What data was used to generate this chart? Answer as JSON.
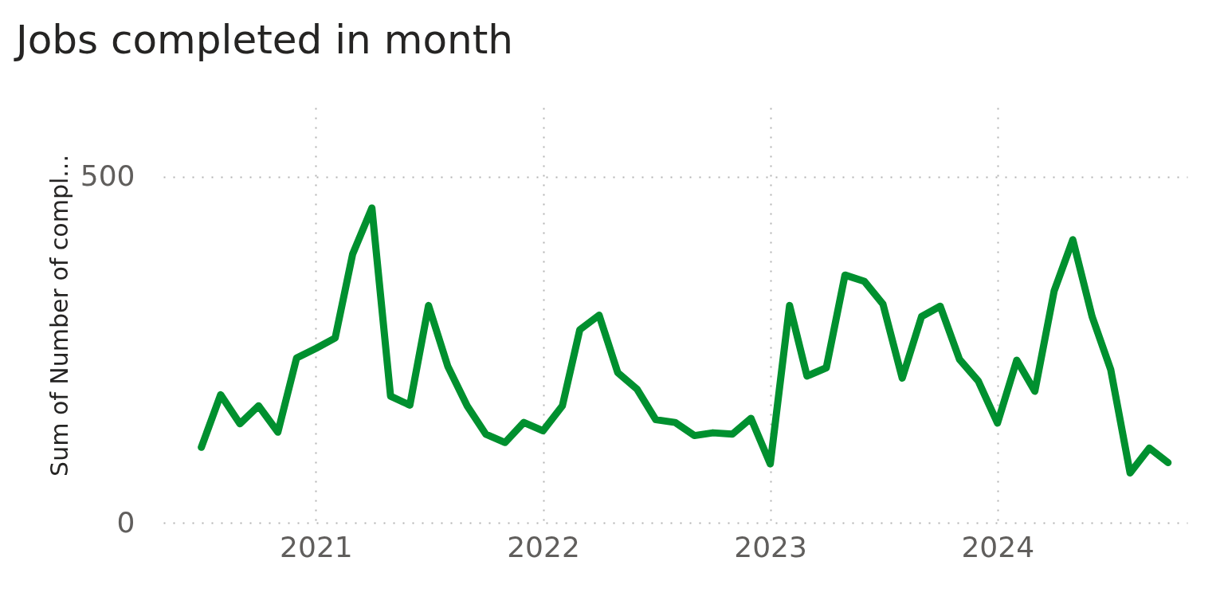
{
  "chart_data": {
    "type": "line",
    "title": "Jobs completed in month",
    "ylabel": "Sum of Number of compl...",
    "x": [
      "2020-07",
      "2020-08",
      "2020-09",
      "2020-10",
      "2020-11",
      "2020-12",
      "2021-01",
      "2021-02",
      "2021-03",
      "2021-04",
      "2021-05",
      "2021-06",
      "2021-07",
      "2021-08",
      "2021-09",
      "2021-10",
      "2021-11",
      "2021-12",
      "2022-01",
      "2022-02",
      "2022-03",
      "2022-04",
      "2022-05",
      "2022-06",
      "2022-07",
      "2022-08",
      "2022-09",
      "2022-10",
      "2022-11",
      "2022-12",
      "2023-01",
      "2023-02",
      "2023-03",
      "2023-04",
      "2023-05",
      "2023-06",
      "2023-07",
      "2023-08",
      "2023-09",
      "2023-10",
      "2023-11",
      "2023-12",
      "2024-01",
      "2024-02",
      "2024-03",
      "2024-04",
      "2024-05",
      "2024-06",
      "2024-07",
      "2024-08",
      "2024-09",
      "2024-10"
    ],
    "series": [
      {
        "color": "#00902f",
        "values": [
          109,
          185,
          143,
          169,
          131,
          238,
          252,
          267,
          388,
          455,
          183,
          170,
          314,
          226,
          169,
          128,
          116,
          145,
          133,
          169,
          279,
          300,
          217,
          193,
          149,
          145,
          126,
          130,
          128,
          151,
          85,
          314,
          212,
          224,
          358,
          349,
          316,
          209,
          298,
          313,
          236,
          205,
          144,
          235,
          190,
          335,
          409,
          298,
          221,
          72,
          108,
          87
        ]
      }
    ],
    "xlim": [
      "2020-05",
      "2024-11"
    ],
    "xticks": [
      "2021",
      "2022",
      "2023",
      "2024"
    ],
    "ylim": [
      0,
      600
    ],
    "yticks": [
      0,
      500
    ],
    "grid": true,
    "line_style": "solid",
    "marker": "none"
  }
}
